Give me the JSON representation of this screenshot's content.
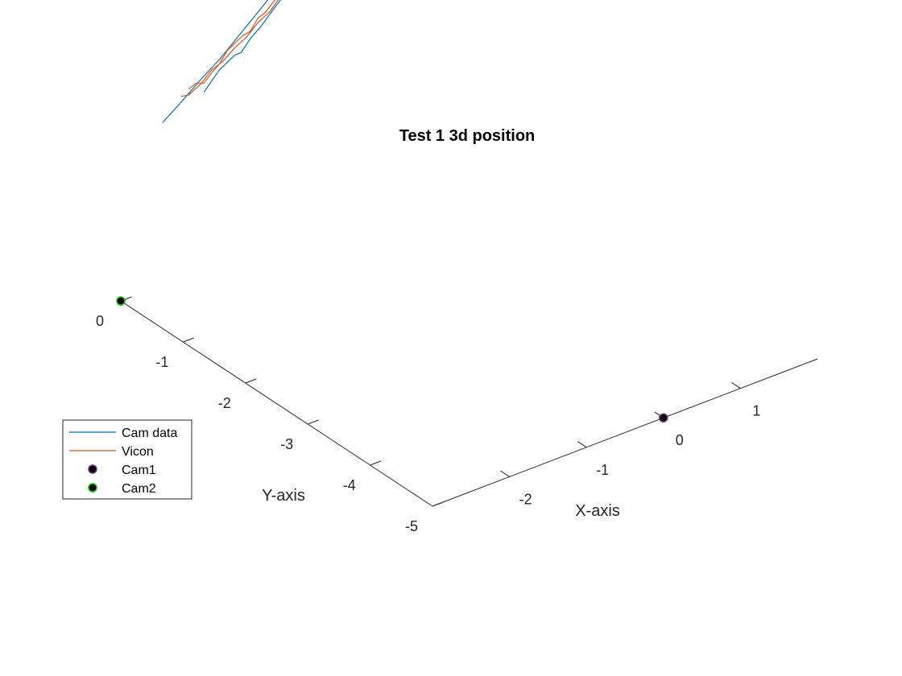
{
  "chart_data": {
    "type": "line3d",
    "title": "Test 1 3d position",
    "xlabel": "X-axis",
    "ylabel": "Y-axis",
    "zlabel": "",
    "xlim": [
      -3,
      2
    ],
    "ylim": [
      -5,
      0
    ],
    "x_ticks": [
      -2,
      -1,
      0,
      1
    ],
    "y_ticks": [
      0,
      -1,
      -2,
      -3,
      -4,
      -5
    ],
    "grid": false,
    "legend_position": "west",
    "series": [
      {
        "name": "Cam data",
        "kind": "line",
        "color": "#0072BD",
        "points": [
          [
            -2.54,
            -0.1,
            1.14
          ],
          [
            -2.3,
            -0.1,
            1.23
          ],
          [
            -2.05,
            -0.1,
            1.33
          ],
          [
            -1.8,
            -0.1,
            1.42
          ],
          [
            -1.55,
            -0.1,
            1.53
          ],
          [
            -1.3,
            -0.1,
            1.64
          ],
          [
            -1.1,
            -0.1,
            1.73
          ],
          [
            -0.92,
            -0.1,
            1.8
          ],
          [
            -0.79,
            -0.1,
            1.84
          ],
          [
            -0.65,
            -0.1,
            1.84
          ],
          [
            -0.52,
            -0.1,
            1.79
          ],
          [
            -0.66,
            -0.1,
            1.8
          ],
          [
            -0.8,
            -0.1,
            1.74
          ],
          [
            -0.95,
            -0.1,
            1.69
          ],
          [
            -1.1,
            -0.1,
            1.62
          ],
          [
            -1.25,
            -0.1,
            1.54
          ],
          [
            -1.4,
            -0.1,
            1.48
          ],
          [
            -1.52,
            -0.1,
            1.41
          ],
          [
            -1.6,
            -0.1,
            1.41
          ],
          [
            -1.8,
            -0.1,
            1.35
          ],
          [
            -2.0,
            -0.1,
            1.24
          ]
        ]
      },
      {
        "name": "Vicon",
        "kind": "line",
        "color": "#D95319",
        "points": [
          [
            -2.2,
            -0.1,
            1.3
          ],
          [
            -2.1,
            -0.1,
            1.32
          ],
          [
            -2.0,
            -0.1,
            1.3
          ],
          [
            -1.9,
            -0.1,
            1.35
          ],
          [
            -1.8,
            -0.1,
            1.39
          ],
          [
            -1.7,
            -0.1,
            1.46
          ],
          [
            -1.6,
            -0.1,
            1.49
          ],
          [
            -1.5,
            -0.1,
            1.52
          ],
          [
            -1.4,
            -0.1,
            1.53
          ],
          [
            -1.3,
            -0.1,
            1.6
          ],
          [
            -1.2,
            -0.1,
            1.62
          ],
          [
            -1.1,
            -0.1,
            1.67
          ],
          [
            -1.0,
            -0.1,
            1.72
          ],
          [
            -0.9,
            -0.1,
            1.74
          ],
          [
            -0.8,
            -0.1,
            1.79
          ],
          [
            -0.7,
            -0.1,
            1.83
          ],
          [
            -0.6,
            -0.1,
            1.87
          ],
          [
            -0.5,
            -0.1,
            1.87
          ],
          [
            -0.4,
            -0.1,
            1.92
          ],
          [
            -0.35,
            -0.1,
            1.92
          ],
          [
            -0.48,
            -0.1,
            1.85
          ],
          [
            -0.6,
            -0.1,
            1.81
          ],
          [
            -0.75,
            -0.1,
            1.78
          ],
          [
            -0.9,
            -0.1,
            1.71
          ],
          [
            -1.0,
            -0.1,
            1.69
          ],
          [
            -1.15,
            -0.1,
            1.61
          ],
          [
            -1.3,
            -0.1,
            1.57
          ],
          [
            -1.45,
            -0.1,
            1.5
          ],
          [
            -1.6,
            -0.1,
            1.46
          ],
          [
            -1.75,
            -0.1,
            1.4
          ],
          [
            -1.9,
            -0.1,
            1.37
          ],
          [
            -2.05,
            -0.1,
            1.3
          ],
          [
            -2.2,
            -0.1,
            1.26
          ],
          [
            -2.3,
            -0.1,
            1.27
          ]
        ]
      },
      {
        "name": "Cam1",
        "kind": "point",
        "color": "#000000",
        "edge_color": "#7E2F8E",
        "points": [
          [
            0,
            -5,
            0
          ]
        ]
      },
      {
        "name": "Cam2",
        "kind": "point",
        "color": "#000000",
        "edge_color": "#00CC00",
        "points": [
          [
            -3,
            0,
            0
          ]
        ]
      }
    ]
  }
}
